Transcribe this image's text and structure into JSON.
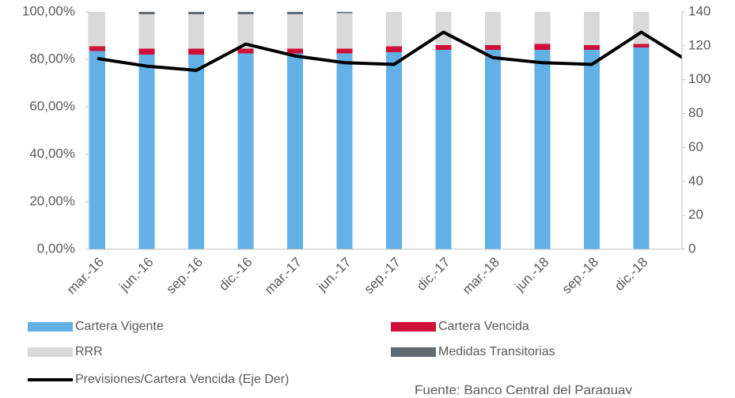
{
  "chart_data": {
    "type": "bar",
    "stacked": true,
    "categories": [
      "mar.-16",
      "jun.-16",
      "sep.-16",
      "dic.-16",
      "mar.-17",
      "jun.-17",
      "sep.-17",
      "dic.-17",
      "mar.-18",
      "jun.-18",
      "sep.-18",
      "dic.-18",
      null
    ],
    "series": [
      {
        "name": "Cartera Vigente",
        "color": "#62b0e6",
        "values": [
          83.5,
          82,
          82,
          82.5,
          82.5,
          82.5,
          83,
          84,
          84,
          84,
          84,
          85,
          84
        ]
      },
      {
        "name": "Cartera Vencida",
        "color": "#d0103a",
        "values": [
          2,
          2.5,
          2.5,
          2,
          2,
          2,
          2.5,
          2,
          2,
          2.5,
          2,
          1.5,
          2
        ]
      },
      {
        "name": "RRR",
        "color": "#d9d9d9",
        "values": [
          14.5,
          14.5,
          14.5,
          14.5,
          14.5,
          15,
          14.5,
          14,
          14,
          13.5,
          14,
          13.5,
          14
        ]
      },
      {
        "name": "Medidas Transitorias",
        "color": "#5f6a72",
        "values": [
          0,
          1,
          1,
          1,
          1,
          0.5,
          0,
          0,
          0,
          0,
          0,
          0,
          0
        ]
      },
      {
        "name": "Previsiones/Cartera Vencida (Eje Der)",
        "color": "#000000",
        "type": "line",
        "axis": "y2",
        "values": [
          112.5,
          108,
          105.5,
          121,
          114,
          110,
          109,
          128,
          113,
          110,
          109,
          128,
          110
        ]
      }
    ],
    "ylim": [
      0,
      100
    ],
    "yticks": [
      {
        "value": 0,
        "label": "0,00%"
      },
      {
        "value": 20,
        "label": "20,00%"
      },
      {
        "value": 40,
        "label": "40,00%"
      },
      {
        "value": 60,
        "label": "60,00%"
      },
      {
        "value": 80,
        "label": "80,00%"
      },
      {
        "value": 100,
        "label": "100,00%"
      }
    ],
    "y2lim": [
      0,
      140
    ],
    "y2ticks": [
      0,
      20,
      40,
      60,
      80,
      100,
      120,
      140
    ],
    "source": "Fuente: Banco Central del Paraguay"
  }
}
